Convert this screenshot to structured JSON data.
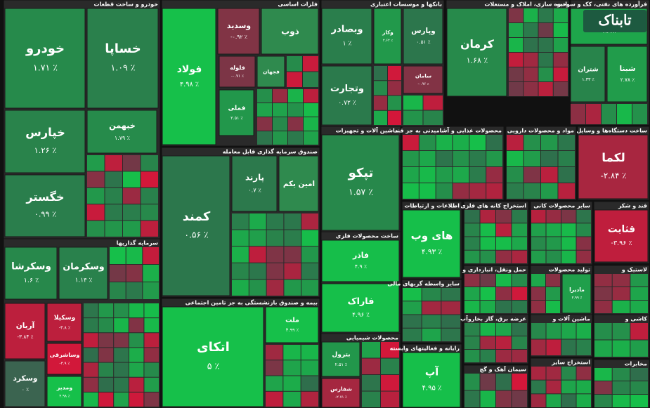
{
  "chart_data": {
    "type": "treemap",
    "logo": "تابناک",
    "sectors": [
      {
        "title": "خودرو و ساخت قطعات",
        "tiles": [
          {
            "name": "خودرو",
            "value": 1.71,
            "value_label": "۱.۷۱ ٪"
          },
          {
            "name": "خساپا",
            "value": 1.09,
            "value_label": "۱.۰۹ ٪"
          },
          {
            "name": "خپارس",
            "value": 1.26,
            "value_label": "۱.۲۶ ٪"
          },
          {
            "name": "خبهمن",
            "value": 1.79,
            "value_label": "۱.۷۹ ٪"
          },
          {
            "name": "خگستر",
            "value": 0.99,
            "value_label": "۰.۹۹ ٪"
          }
        ]
      },
      {
        "title": "فلزات اساسی",
        "tiles": [
          {
            "name": "فولاد",
            "value": 4.98,
            "value_label": "۴.۹۸ ٪"
          },
          {
            "name": "وسدید",
            "value": -0.92,
            "value_label": "-۰.۹۲ ٪"
          },
          {
            "name": "ذوب"
          },
          {
            "name": "فلوله",
            "value": -0.71,
            "value_label": "-۰.۷۱ ٪"
          },
          {
            "name": "فملی",
            "value": 2.51,
            "value_label": "۲.۵۱ ٪"
          },
          {
            "name": "فجهان"
          }
        ]
      },
      {
        "title": "بانکها و موسسات اعتباری",
        "tiles": [
          {
            "name": "وبصادر",
            "value": 1,
            "value_label": "۱ ٪"
          },
          {
            "name": "وکار",
            "value": 2.62,
            "value_label": "۲.۶۲ ٪"
          },
          {
            "name": "وپارس",
            "value": 0.51,
            "value_label": "۰.۵۱ ٪"
          },
          {
            "name": "وتجارت",
            "value": 0.72,
            "value_label": "۰.۷۲ ٪"
          },
          {
            "name": "سامان",
            "value": -0.96,
            "value_label": "-۰.۹۶ ٪"
          }
        ]
      },
      {
        "title": "انبوه سازی، املاک و مستغلات",
        "tiles": [
          {
            "name": "کرمان",
            "value": 1.68,
            "value_label": "۱.۶۸ ٪"
          }
        ]
      },
      {
        "title": "فرآورده های نفتی، کک و سوخت",
        "tiles": [
          {
            "name": "شپنا",
            "value": 3.39,
            "value_label": "۳.۳۹ ٪"
          },
          {
            "name": "شتران",
            "value": 1.33,
            "value_label": "۱.۳۳ ٪"
          },
          {
            "name": "شبنا",
            "value": 2.78,
            "value_label": "۲.۷۸ ٪"
          }
        ]
      },
      {
        "title": "ماشین آلات و تجهیزات",
        "tiles": [
          {
            "name": "تپکو",
            "value": 1.57,
            "value_label": "۱.۵۷ ٪"
          }
        ]
      },
      {
        "title": "محصولات غذایی و آشامیدنی به جز قند",
        "tiles": []
      },
      {
        "title": "مواد و محصولات دارویی",
        "tiles": []
      },
      {
        "title": "ساخت دستگاه‌ها و وسایل",
        "tiles": [
          {
            "name": "لکما",
            "value": -2.84,
            "value_label": "-۲.۸۴ ٪"
          }
        ]
      },
      {
        "title": "ساخت محصولات فلزی",
        "tiles": [
          {
            "name": "فاذر",
            "value": 4.9,
            "value_label": "۴.۹ ٪"
          },
          {
            "name": "فاراک",
            "value": 4.96,
            "value_label": "۴.۹۶ ٪"
          }
        ]
      },
      {
        "title": "اطلاعات و ارتباطات",
        "tiles": [
          {
            "name": "های وب",
            "value": 4.93,
            "value_label": "۴.۹۳ ٪"
          }
        ]
      },
      {
        "title": "استخراج کانه های فلزی",
        "tiles": []
      },
      {
        "title": "سایر محصولات کانی",
        "tiles": []
      },
      {
        "title": "قند و شکر",
        "tiles": [
          {
            "name": "قثابت",
            "value": -3.96,
            "value_label": "-۳.۹۶ ٪"
          }
        ]
      },
      {
        "title": "سایر واسطه گریهای مالی",
        "tiles": []
      },
      {
        "title": "حمل ونقل، انبارداری و",
        "tiles": []
      },
      {
        "title": "تولید محصولات",
        "tiles": [
          {
            "name": "مادیرا",
            "value": 2.99,
            "value_label": "۲.۹۹ ٪"
          }
        ]
      },
      {
        "title": "لاستیک و",
        "tiles": []
      },
      {
        "title": "عرضه برق، گاز بخاروآب",
        "tiles": []
      },
      {
        "title": "ماشین آلات و",
        "tiles": []
      },
      {
        "title": "کاشی و",
        "tiles": []
      },
      {
        "title": "محصولات شیمیایی",
        "tiles": [
          {
            "name": "بترول",
            "value": 2.51,
            "value_label": "۲.۵۱ ٪"
          },
          {
            "name": "شفارس",
            "value": -2.71,
            "value_label": "-۲.۷۱ ٪"
          }
        ]
      },
      {
        "title": "رایانه و فعالیتهای وابسته",
        "tiles": [
          {
            "name": "آپ",
            "value": 4.95,
            "value_label": "۴.۹۵ ٪"
          }
        ]
      },
      {
        "title": "سیمان آهک و گچ",
        "tiles": []
      },
      {
        "title": "استخراج سایر",
        "tiles": []
      },
      {
        "title": "مخابرات",
        "tiles": []
      },
      {
        "title": "صندوق سرمایه گذاری قابل معامله",
        "tiles": [
          {
            "name": "کمند",
            "value": 0.56,
            "value_label": "۰.۵۶ ٪"
          },
          {
            "name": "پارند",
            "value": 0.7,
            "value_label": "۰.۷ ٪"
          },
          {
            "name": "امین یکم"
          }
        ]
      },
      {
        "title": "بیمه و صندوق بازنشستگی به جز تامین اجتماعی",
        "tiles": [
          {
            "name": "اتکای",
            "value": 5,
            "value_label": "۵ ٪"
          },
          {
            "name": "ملت",
            "value": 4.99,
            "value_label": "۴.۹۹ ٪"
          }
        ]
      },
      {
        "title": "سرمایه گذاریها",
        "tiles": [
          {
            "name": "وسکرشا",
            "value": 1.6,
            "value_label": "۱.۶ ٪"
          },
          {
            "name": "وسکرمان",
            "value": 1.14,
            "value_label": "۱.۱۴ ٪"
          },
          {
            "name": "آریان",
            "value": -3.84,
            "value_label": "-۳.۸۴ ٪"
          },
          {
            "name": "وسکیلا",
            "value": -3.8,
            "value_label": "-۳.۸ ٪"
          },
          {
            "name": "وساشرقی",
            "value": -4.9,
            "value_label": "-۴.۹ ٪"
          },
          {
            "name": "وسکرد",
            "value": 0,
            "value_label": "۰ ٪"
          },
          {
            "name": "ومدیر",
            "value": 4.98,
            "value_label": "۴.۹۸ ٪"
          }
        ]
      }
    ]
  }
}
